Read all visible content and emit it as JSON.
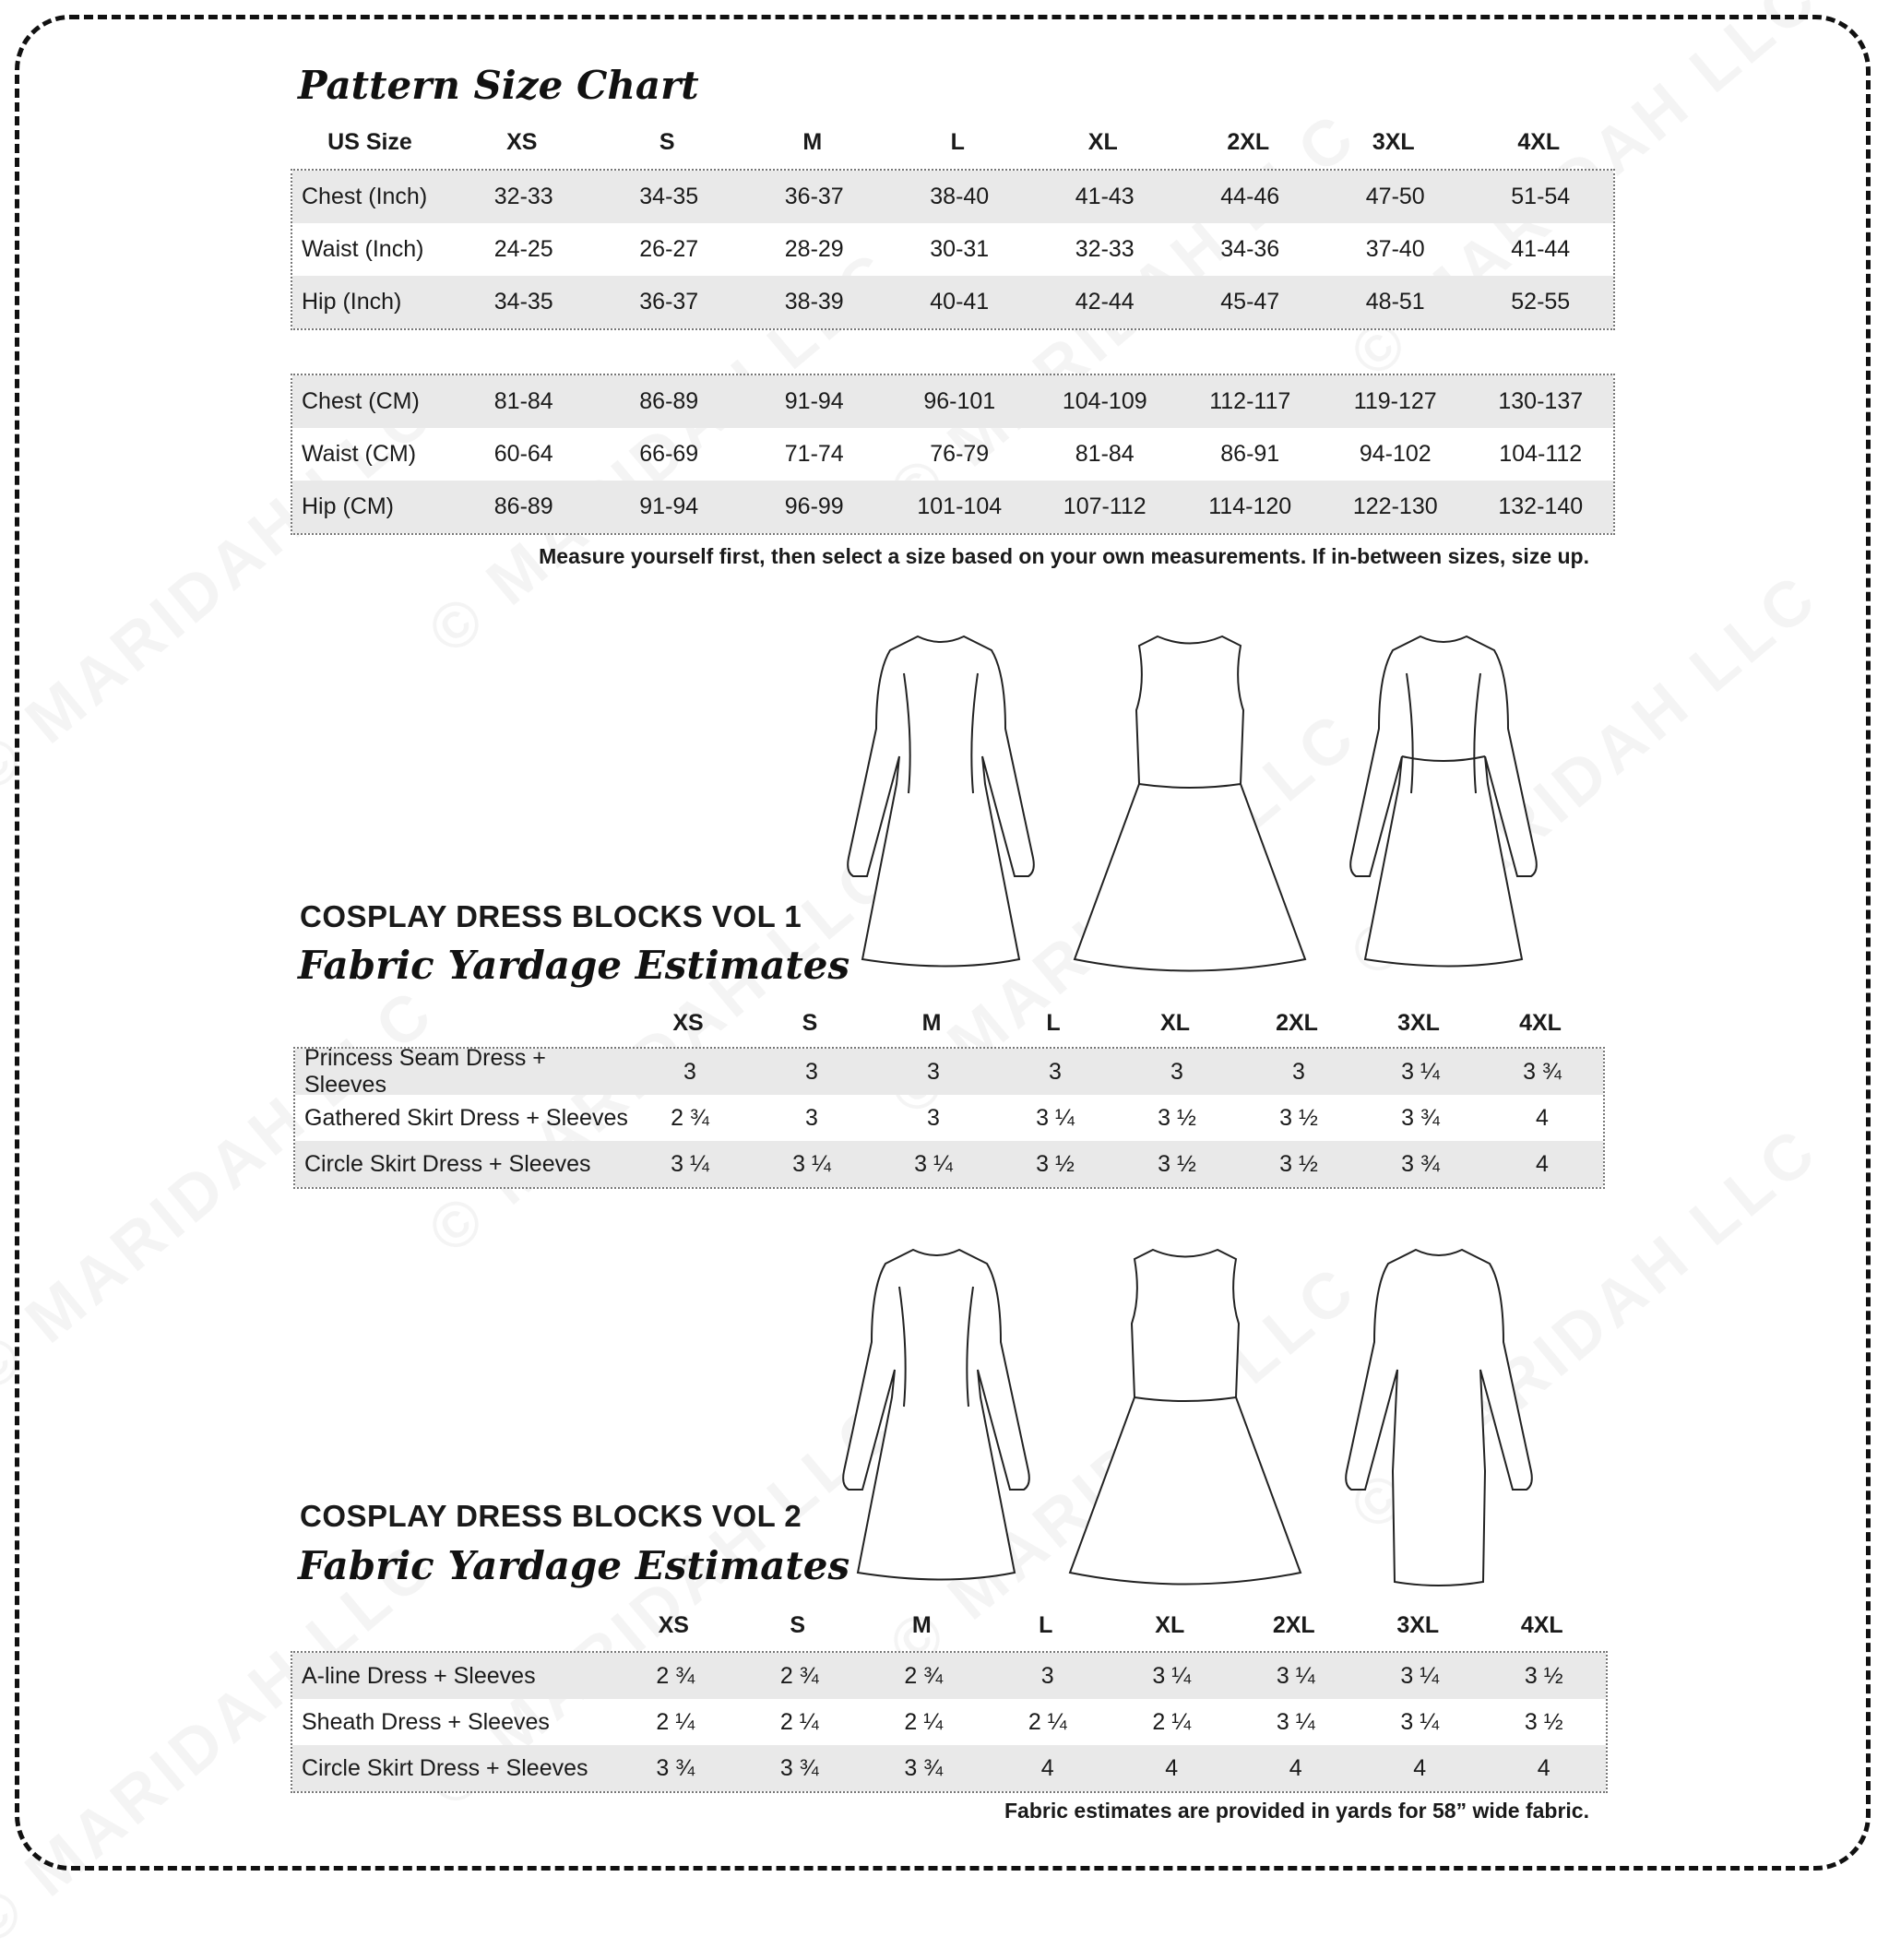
{
  "watermark": "© MARIDAH LLC",
  "size_chart": {
    "title": "Pattern Size Chart",
    "header_label": "US Size",
    "sizes": [
      "XS",
      "S",
      "M",
      "L",
      "XL",
      "2XL",
      "3XL",
      "4XL"
    ],
    "inch_rows": [
      {
        "label": "Chest (Inch)",
        "values": [
          "32-33",
          "34-35",
          "36-37",
          "38-40",
          "41-43",
          "44-46",
          "47-50",
          "51-54"
        ]
      },
      {
        "label": "Waist (Inch)",
        "values": [
          "24-25",
          "26-27",
          "28-29",
          "30-31",
          "32-33",
          "34-36",
          "37-40",
          "41-44"
        ]
      },
      {
        "label": "Hip (Inch)",
        "values": [
          "34-35",
          "36-37",
          "38-39",
          "40-41",
          "42-44",
          "45-47",
          "48-51",
          "52-55"
        ]
      }
    ],
    "cm_rows": [
      {
        "label": "Chest (CM)",
        "values": [
          "81-84",
          "86-89",
          "91-94",
          "96-101",
          "104-109",
          "112-117",
          "119-127",
          "130-137"
        ]
      },
      {
        "label": "Waist (CM)",
        "values": [
          "60-64",
          "66-69",
          "71-74",
          "76-79",
          "81-84",
          "86-91",
          "94-102",
          "104-112"
        ]
      },
      {
        "label": "Hip (CM)",
        "values": [
          "86-89",
          "91-94",
          "96-99",
          "101-104",
          "107-112",
          "114-120",
          "122-130",
          "132-140"
        ]
      }
    ],
    "note": "Measure yourself first, then select a size based on your own measurements. If in-between sizes, size up."
  },
  "vol1": {
    "heading": "COSPLAY DRESS BLOCKS VOL 1",
    "title": "Fabric Yardage Estimates",
    "sizes": [
      "XS",
      "S",
      "M",
      "L",
      "XL",
      "2XL",
      "3XL",
      "4XL"
    ],
    "rows": [
      {
        "label": "Princess Seam Dress + Sleeves",
        "values": [
          "3",
          "3",
          "3",
          "3",
          "3",
          "3",
          "3 ¼",
          "3 ¾"
        ]
      },
      {
        "label": "Gathered Skirt Dress + Sleeves",
        "values": [
          "2 ¾",
          "3",
          "3",
          "3 ¼",
          "3 ½",
          "3 ½",
          "3 ¾",
          "4"
        ]
      },
      {
        "label": "Circle Skirt Dress + Sleeves",
        "values": [
          "3 ¼",
          "3 ¼",
          "3 ¼",
          "3 ½",
          "3 ½",
          "3 ½",
          "3 ¾",
          "4"
        ]
      }
    ]
  },
  "vol2": {
    "heading": "COSPLAY DRESS BLOCKS VOL 2",
    "title": "Fabric Yardage Estimates",
    "sizes": [
      "XS",
      "S",
      "M",
      "L",
      "XL",
      "2XL",
      "3XL",
      "4XL"
    ],
    "rows": [
      {
        "label": "A-line Dress + Sleeves",
        "values": [
          "2 ¾",
          "2 ¾",
          "2 ¾",
          "3",
          "3 ¼",
          "3 ¼",
          "3 ¼",
          "3 ½"
        ]
      },
      {
        "label": "Sheath Dress + Sleeves",
        "values": [
          "2 ¼",
          "2 ¼",
          "2 ¼",
          "2 ¼",
          "2 ¼",
          "3 ¼",
          "3 ¼",
          "3 ½"
        ]
      },
      {
        "label": "Circle Skirt Dress + Sleeves",
        "values": [
          "3 ¾",
          "3 ¾",
          "3 ¾",
          "4",
          "4",
          "4",
          "4",
          "4"
        ]
      }
    ],
    "note": "Fabric estimates are provided in yards for 58” wide fabric."
  }
}
